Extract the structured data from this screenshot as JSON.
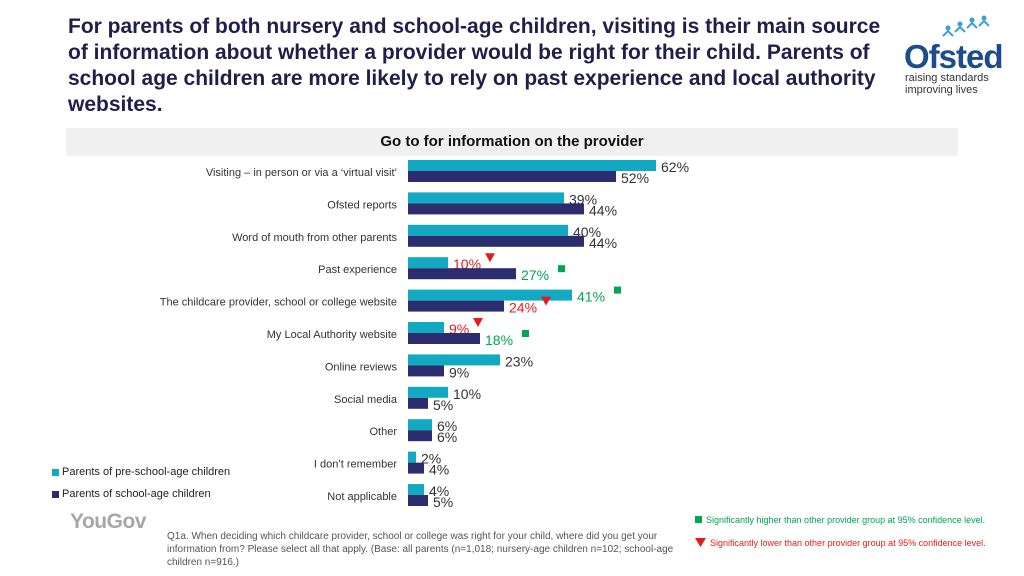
{
  "headline": "For parents of both nursery and school-age children, visiting is their main source of information about whether a provider would be right for their child. Parents of school age children are more likely to rely on past experience and local authority websites.",
  "logo": {
    "name": "Ofsted",
    "tagline_1": "raising standards",
    "tagline_2": "improving lives",
    "stars_icon": "stars-icon"
  },
  "subtitle": "Go to for information on the provider",
  "chart_data": {
    "type": "bar",
    "orientation": "horizontal",
    "title": "Go to for information on the provider",
    "categories": [
      "Visiting – in person or via a ‘virtual visit’",
      "Ofsted reports",
      "Word of mouth from other parents",
      "Past experience",
      "The childcare provider, school or college website",
      "My Local Authority website",
      "Online reviews",
      "Social media",
      "Other",
      "I don’t remember",
      "Not applicable"
    ],
    "series": [
      {
        "name": "Parents of pre-school-age children",
        "color": "#12a9c3",
        "values": [
          62,
          39,
          40,
          10,
          41,
          9,
          23,
          10,
          6,
          2,
          4
        ],
        "flags": [
          "",
          "",
          "",
          "lower",
          "higher",
          "lower",
          "",
          "",
          "",
          "",
          ""
        ]
      },
      {
        "name": "Parents of school-age children",
        "color": "#2b2d6e",
        "values": [
          52,
          44,
          44,
          27,
          24,
          18,
          9,
          5,
          6,
          4,
          5
        ],
        "flags": [
          "",
          "",
          "",
          "higher",
          "lower",
          "higher",
          "",
          "",
          "",
          "",
          ""
        ]
      }
    ],
    "value_suffix": "%",
    "xlim": [
      0,
      62
    ]
  },
  "colors": {
    "higher": "#00a651",
    "lower": "#e41b1b",
    "default_label": "#333333"
  },
  "legend": {
    "preschool": "Parents of pre-school-age children",
    "school": "Parents of school-age children"
  },
  "significance": {
    "higher": "Significantly higher than other provider group at 95% confidence level.",
    "lower": "Significantly lower than other provider group at 95% confidence level."
  },
  "footer": {
    "brand": "YouGov",
    "note": "Q1a. When deciding which childcare provider, school or college was right for your child, where did you get your information from? Please select all that apply. (Base: all parents (n=1,018; nursery-age children n=102; school-age children n=916.)"
  }
}
